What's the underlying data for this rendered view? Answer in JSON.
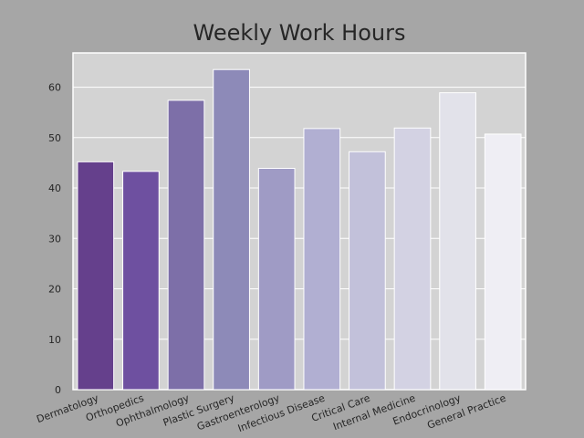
{
  "chart_data": {
    "type": "bar",
    "title": "Weekly Work Hours",
    "xlabel": "",
    "ylabel": "",
    "categories": [
      "Dermatology",
      "Orthopedics",
      "Ophthalmology",
      "Plastic Surgery",
      "Gastroenterology",
      "Infectious Disease",
      "Critical Care",
      "Internal Medicine",
      "Endocrinology",
      "General Practice"
    ],
    "values": [
      45.2,
      43.3,
      57.4,
      63.5,
      43.9,
      51.8,
      47.2,
      51.9,
      58.9,
      50.7
    ],
    "ylim": [
      0,
      66.8
    ],
    "yticks": [
      0,
      10,
      20,
      30,
      40,
      50,
      60
    ],
    "grid": true,
    "colors": [
      "#65408c",
      "#6e50a0",
      "#7d6fa8",
      "#8d8ab8",
      "#9f9bc5",
      "#b1afd2",
      "#c2c1da",
      "#d3d2e3",
      "#e2e2ea",
      "#efeef4"
    ],
    "plot_background": "#d3d3d3",
    "figure_background": "#a6a6a6"
  }
}
